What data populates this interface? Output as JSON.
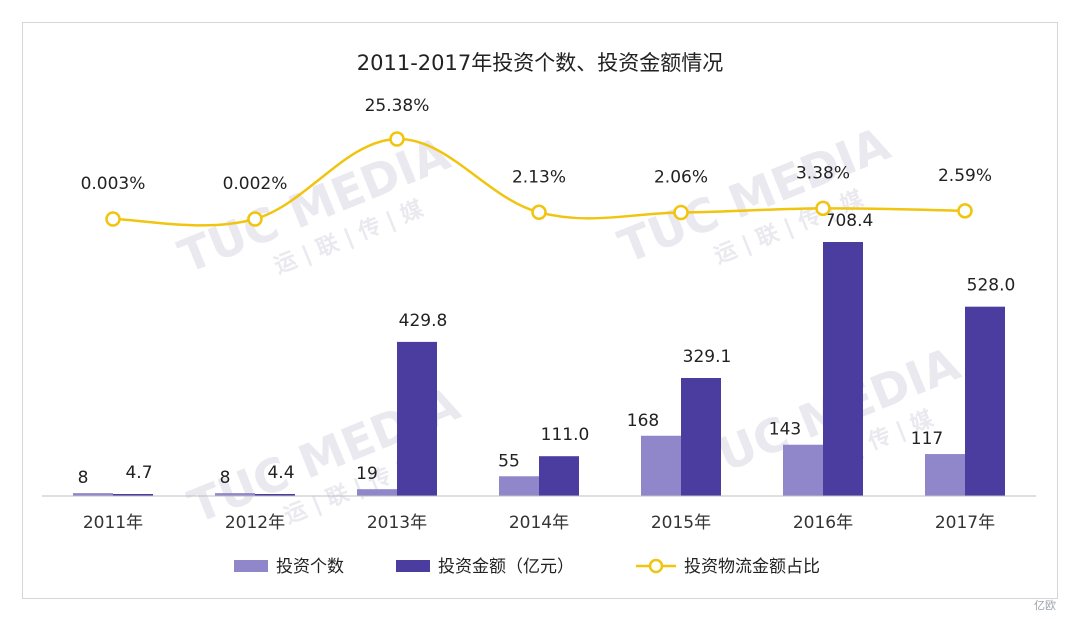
{
  "chart_data": {
    "type": "bar",
    "title": "2011-2017年投资个数、投资金额情况",
    "categories": [
      "2011年",
      "2012年",
      "2013年",
      "2014年",
      "2015年",
      "2016年",
      "2017年"
    ],
    "series": [
      {
        "name": "投资个数",
        "type": "bar",
        "color": "#8f87c9",
        "values": [
          8,
          8,
          19,
          55,
          168,
          143,
          117
        ],
        "labels": [
          "8",
          "8",
          "19",
          "55",
          "168",
          "143",
          "117"
        ]
      },
      {
        "name": "投资金额（亿元）",
        "type": "bar",
        "color": "#4a3d9f",
        "values": [
          4.7,
          4.4,
          429.8,
          111.0,
          329.1,
          708.4,
          528.0
        ],
        "labels": [
          "4.7",
          "4.4",
          "429.8",
          "111.0",
          "329.1",
          "708.4",
          "528.0"
        ]
      },
      {
        "name": "投资物流金额占比",
        "type": "line",
        "color": "#f1c40f",
        "values": [
          0.003,
          0.002,
          25.38,
          2.13,
          2.06,
          3.38,
          2.59
        ],
        "labels": [
          "0.003%",
          "0.002%",
          "25.38%",
          "2.13%",
          "2.06%",
          "3.38%",
          "2.59%"
        ]
      }
    ],
    "legend": "bottom",
    "grid": false
  },
  "watermark": {
    "text": "TUC MEDIA",
    "subtext": "运 | 联 | 传 | 媒",
    "corner_logo": "亿欧"
  }
}
